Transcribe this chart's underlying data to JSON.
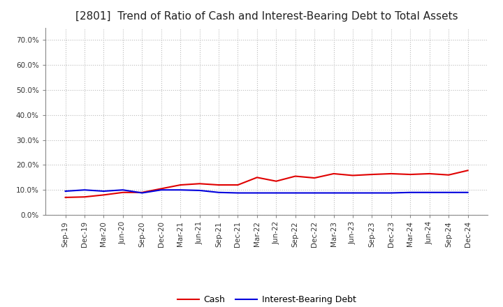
{
  "title": "[2801]  Trend of Ratio of Cash and Interest-Bearing Debt to Total Assets",
  "x_labels": [
    "Sep-19",
    "Dec-19",
    "Mar-20",
    "Jun-20",
    "Sep-20",
    "Dec-20",
    "Mar-21",
    "Jun-21",
    "Sep-21",
    "Dec-21",
    "Mar-22",
    "Jun-22",
    "Sep-22",
    "Dec-22",
    "Mar-23",
    "Jun-23",
    "Sep-23",
    "Dec-23",
    "Mar-24",
    "Jun-24",
    "Sep-24",
    "Dec-24"
  ],
  "cash": [
    0.07,
    0.072,
    0.08,
    0.09,
    0.09,
    0.105,
    0.12,
    0.125,
    0.12,
    0.12,
    0.15,
    0.135,
    0.155,
    0.148,
    0.165,
    0.158,
    0.162,
    0.165,
    0.162,
    0.165,
    0.16,
    0.178
  ],
  "interest_bearing_debt": [
    0.095,
    0.1,
    0.095,
    0.1,
    0.088,
    0.1,
    0.1,
    0.098,
    0.09,
    0.088,
    0.088,
    0.088,
    0.088,
    0.088,
    0.088,
    0.088,
    0.088,
    0.088,
    0.09,
    0.09,
    0.09,
    0.09
  ],
  "ylim": [
    0.0,
    0.75
  ],
  "yticks": [
    0.0,
    0.1,
    0.2,
    0.3,
    0.4,
    0.5,
    0.6,
    0.7
  ],
  "ytick_labels": [
    "0.0%",
    "10.0%",
    "20.0%",
    "30.0%",
    "40.0%",
    "50.0%",
    "60.0%",
    "70.0%"
  ],
  "cash_color": "#e00000",
  "debt_color": "#0000dd",
  "cash_label": "Cash",
  "debt_label": "Interest-Bearing Debt",
  "background_color": "#ffffff",
  "plot_bg_color": "#ffffff",
  "grid_color": "#bbbbbb",
  "title_fontsize": 11,
  "legend_fontsize": 9,
  "axis_fontsize": 7.5
}
